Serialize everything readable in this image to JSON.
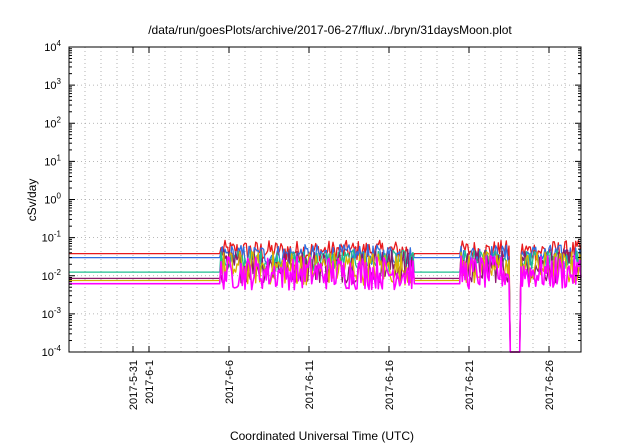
{
  "chart_data": {
    "type": "line",
    "title": "/data/run/goesPlots/archive/2017-06-27/flux/../bryn/31daysMoon.plot",
    "xlabel": "Coordinated Universal Time (UTC)",
    "ylabel": "cSv/day",
    "yscale": "log",
    "ylim": [
      0.0001,
      10000
    ],
    "xlim": [
      "2017-05-27",
      "2017-06-28"
    ],
    "grid": true,
    "legend": "none",
    "y_ticks": [
      {
        "value": 0.0001,
        "base": "10",
        "exp": "-4"
      },
      {
        "value": 0.001,
        "base": "10",
        "exp": "-3"
      },
      {
        "value": 0.01,
        "base": "10",
        "exp": "-2"
      },
      {
        "value": 0.1,
        "base": "10",
        "exp": "-1"
      },
      {
        "value": 1,
        "base": "10",
        "exp": "0"
      },
      {
        "value": 10,
        "base": "10",
        "exp": "1"
      },
      {
        "value": 100,
        "base": "10",
        "exp": "2"
      },
      {
        "value": 1000,
        "base": "10",
        "exp": "3"
      },
      {
        "value": 10000,
        "base": "10",
        "exp": "4"
      }
    ],
    "x_ticks": [
      {
        "date": "2017-05-31",
        "label": "2017-5-31"
      },
      {
        "date": "2017-06-01",
        "label": "2017-6-1"
      },
      {
        "date": "2017-06-06",
        "label": "2017-6-6"
      },
      {
        "date": "2017-06-11",
        "label": "2017-6-11"
      },
      {
        "date": "2017-06-16",
        "label": "2017-6-16"
      },
      {
        "date": "2017-06-21",
        "label": "2017-6-21"
      },
      {
        "date": "2017-06-26",
        "label": "2017-6-26"
      }
    ],
    "data_segments": [
      {
        "start": "2017-06-05T12:00",
        "end": "2017-06-17T12:00"
      },
      {
        "start": "2017-06-20T12:00",
        "end": "2017-06-23T12:00"
      },
      {
        "start": "2017-06-24T06:00",
        "end": "2017-06-28T00:00"
      }
    ],
    "dropout": {
      "start": "2017-06-23T12:00",
      "end": "2017-06-24T06:00"
    },
    "series": [
      {
        "color": "#e8191c",
        "baseline": 0.038,
        "noisy_level": 0.045
      },
      {
        "color": "#2f6fe0",
        "baseline": 0.03,
        "noisy_level": 0.035
      },
      {
        "color": "#1fbf8f",
        "baseline": 0.0125,
        "noisy_level": 0.025
      },
      {
        "color": "#8a1a6e",
        "baseline": 0.0085,
        "noisy_level": 0.018
      },
      {
        "color": "#d9b300",
        "baseline": 0.0075,
        "noisy_level": 0.016
      },
      {
        "color": "#ff00ff",
        "baseline": 0.0062,
        "noisy_level": 0.012
      }
    ]
  }
}
